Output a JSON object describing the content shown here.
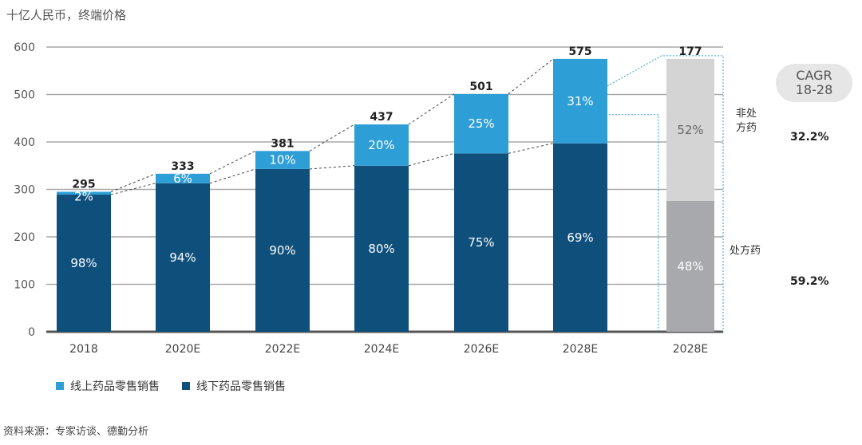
{
  "unit_label": "十亿人民币，终端价格",
  "source": "资料来源：专家访谈、德勤分析",
  "legend": [
    {
      "label": "线上药品零售销售",
      "color": "#2e9fd6"
    },
    {
      "label": "线下药品零售销售",
      "color": "#0e4f7c"
    }
  ],
  "cagr_badge": {
    "line1": "CAGR",
    "line2": "18-28"
  },
  "side_labels": {
    "nonprescription_line1": "非处",
    "nonprescription_line2": "方药",
    "prescription": "处方药"
  },
  "cagr_values": {
    "nonprescription": "32.2%",
    "prescription": "59.2%"
  },
  "chart_data": {
    "type": "bar",
    "stacked": true,
    "categories": [
      "2018",
      "2020E",
      "2022E",
      "2024E",
      "2026E",
      "2028E"
    ],
    "totals": [
      295,
      333,
      381,
      437,
      501,
      575
    ],
    "series": [
      {
        "name": "线下药品零售销售",
        "shares": [
          "98%",
          "94%",
          "90%",
          "80%",
          "75%",
          "69%"
        ],
        "values": [
          289,
          313,
          343,
          350,
          376,
          397
        ],
        "color": "#0e4f7c"
      },
      {
        "name": "线上药品零售销售",
        "shares": [
          "2%",
          "6%",
          "10%",
          "20%",
          "25%",
          "31%"
        ],
        "values": [
          6,
          20,
          38,
          87,
          125,
          178
        ],
        "color": "#2e9fd6"
      }
    ],
    "breakdown": {
      "category": "2028E",
      "total": 177,
      "segments": [
        {
          "share": "48%",
          "color": "#a7a9ac"
        },
        {
          "share": "52%",
          "color": "#d4d4d4"
        }
      ]
    },
    "ylim": [
      0,
      600
    ],
    "yticks": [
      0,
      100,
      200,
      300,
      400,
      500,
      600
    ],
    "grid": true
  }
}
